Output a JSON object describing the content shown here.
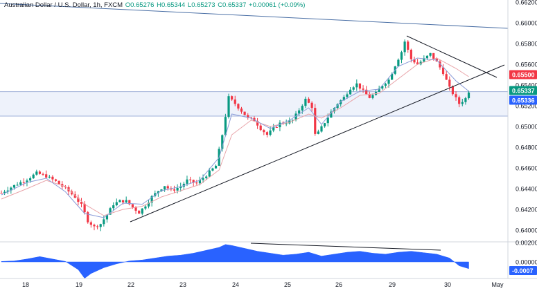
{
  "header": {
    "symbol": "Australian Dollar / U.S. Dollar, 1h, FXCM",
    "open": "O0.65276",
    "high": "H0.65344",
    "low": "L0.65273",
    "close": "C0.65337",
    "change": "+0.00061 (+0.09%)"
  },
  "chart_data": [
    {
      "type": "candlestick",
      "title": "Australian Dollar / U.S. Dollar, 1h, FXCM",
      "x_tick_labels": [
        "18",
        "19",
        "22",
        "23",
        "24",
        "25",
        "26",
        "29",
        "30",
        "May"
      ],
      "y_tick_labels": [
        "0.64000",
        "0.64200",
        "0.64400",
        "0.64600",
        "0.64800",
        "0.65000",
        "0.65200",
        "0.65400",
        "0.65600",
        "0.65800",
        "0.66000",
        "0.66200"
      ],
      "ylim": [
        0.6397,
        0.6625
      ],
      "grid": false,
      "price_labels": [
        {
          "value": "0.65500",
          "color": "#f23645"
        },
        {
          "value": "0.65337",
          "color": "#089981"
        },
        {
          "value": "0.65336",
          "color": "#2962ff"
        }
      ],
      "last_close": 0.65337,
      "series_path": [
        [
          0,
          0.6436
        ],
        [
          4,
          0.6443
        ],
        [
          8,
          0.6449
        ],
        [
          11,
          0.6455
        ],
        [
          14,
          0.6452
        ],
        [
          17,
          0.6447
        ],
        [
          20,
          0.644
        ],
        [
          23,
          0.6432
        ],
        [
          25,
          0.6424
        ],
        [
          27,
          0.6409
        ],
        [
          29,
          0.6403
        ],
        [
          31,
          0.6406
        ],
        [
          33,
          0.6415
        ],
        [
          35,
          0.6425
        ],
        [
          37,
          0.6428
        ],
        [
          39,
          0.6428
        ],
        [
          41,
          0.6422
        ],
        [
          43,
          0.6417
        ],
        [
          45,
          0.6424
        ],
        [
          47,
          0.6432
        ],
        [
          49,
          0.6438
        ],
        [
          51,
          0.6443
        ],
        [
          53,
          0.6438
        ],
        [
          56,
          0.6442
        ],
        [
          58,
          0.6448
        ],
        [
          61,
          0.6445
        ],
        [
          64,
          0.6453
        ],
        [
          67,
          0.6462
        ],
        [
          69,
          0.6492
        ],
        [
          71,
          0.6528
        ],
        [
          73,
          0.6522
        ],
        [
          75,
          0.6515
        ],
        [
          77,
          0.6508
        ],
        [
          79,
          0.6506
        ],
        [
          81,
          0.6498
        ],
        [
          83,
          0.6492
        ],
        [
          85,
          0.6498
        ],
        [
          87,
          0.6503
        ],
        [
          89,
          0.6504
        ],
        [
          91,
          0.6506
        ],
        [
          93,
          0.6516
        ],
        [
          95,
          0.6526
        ],
        [
          97,
          0.6519
        ],
        [
          98,
          0.6492
        ],
        [
          99,
          0.6494
        ],
        [
          101,
          0.6504
        ],
        [
          103,
          0.6514
        ],
        [
          105,
          0.6522
        ],
        [
          107,
          0.6528
        ],
        [
          109,
          0.6537
        ],
        [
          111,
          0.6541
        ],
        [
          113,
          0.6534
        ],
        [
          115,
          0.6528
        ],
        [
          117,
          0.6532
        ],
        [
          119,
          0.654
        ],
        [
          121,
          0.6545
        ],
        [
          123,
          0.6559
        ],
        [
          125,
          0.6572
        ],
        [
          126,
          0.6582
        ],
        [
          128,
          0.6565
        ],
        [
          130,
          0.656
        ],
        [
          132,
          0.6565
        ],
        [
          134,
          0.657
        ],
        [
          136,
          0.6562
        ],
        [
          138,
          0.6552
        ],
        [
          140,
          0.6537
        ],
        [
          142,
          0.6527
        ],
        [
          143,
          0.6522
        ],
        [
          145,
          0.6527
        ],
        [
          146,
          0.6534
        ]
      ],
      "ma_red": [
        [
          0,
          0.643
        ],
        [
          8,
          0.644
        ],
        [
          14,
          0.6448
        ],
        [
          20,
          0.6442
        ],
        [
          26,
          0.6425
        ],
        [
          32,
          0.6414
        ],
        [
          38,
          0.642
        ],
        [
          44,
          0.6423
        ],
        [
          50,
          0.6432
        ],
        [
          56,
          0.6438
        ],
        [
          62,
          0.6444
        ],
        [
          68,
          0.6458
        ],
        [
          72,
          0.6492
        ],
        [
          78,
          0.6506
        ],
        [
          84,
          0.65
        ],
        [
          90,
          0.6504
        ],
        [
          96,
          0.6512
        ],
        [
          100,
          0.6508
        ],
        [
          106,
          0.6518
        ],
        [
          112,
          0.653
        ],
        [
          118,
          0.6532
        ],
        [
          124,
          0.6546
        ],
        [
          130,
          0.656
        ],
        [
          136,
          0.6566
        ],
        [
          142,
          0.6556
        ],
        [
          146,
          0.6548
        ]
      ],
      "ma_blue": [
        [
          0,
          0.6434
        ],
        [
          8,
          0.6446
        ],
        [
          14,
          0.645
        ],
        [
          20,
          0.6437
        ],
        [
          26,
          0.6416
        ],
        [
          32,
          0.6412
        ],
        [
          38,
          0.6426
        ],
        [
          44,
          0.6425
        ],
        [
          50,
          0.6438
        ],
        [
          56,
          0.6442
        ],
        [
          62,
          0.6448
        ],
        [
          68,
          0.647
        ],
        [
          72,
          0.6512
        ],
        [
          78,
          0.6508
        ],
        [
          84,
          0.6498
        ],
        [
          90,
          0.6506
        ],
        [
          96,
          0.6518
        ],
        [
          100,
          0.6502
        ],
        [
          106,
          0.6524
        ],
        [
          112,
          0.6534
        ],
        [
          118,
          0.6536
        ],
        [
          124,
          0.6558
        ],
        [
          130,
          0.6566
        ],
        [
          136,
          0.6564
        ],
        [
          142,
          0.6544
        ],
        [
          146,
          0.6534
        ]
      ]
    },
    {
      "type": "area",
      "y_tick_labels": [
        "0.00200",
        "0.00000"
      ],
      "value_label": "-0.0007",
      "series": [
        {
          "values": [
            [
              0,
              5e-05
            ],
            [
              4,
              0.0001
            ],
            [
              8,
              0.0003
            ],
            [
              12,
              0.00055
            ],
            [
              16,
              0.0003
            ],
            [
              20,
              5e-05
            ],
            [
              24,
              -0.0008
            ],
            [
              26,
              -0.0017
            ],
            [
              28,
              -0.0012
            ],
            [
              32,
              -0.0006
            ],
            [
              36,
              -0.0002
            ],
            [
              40,
              0.0001
            ],
            [
              44,
              0.0002
            ],
            [
              48,
              0.0004
            ],
            [
              52,
              0.0006
            ],
            [
              56,
              0.0007
            ],
            [
              60,
              0.0009
            ],
            [
              64,
              0.0012
            ],
            [
              68,
              0.0015
            ],
            [
              70,
              0.0018
            ],
            [
              72,
              0.0017
            ],
            [
              76,
              0.0014
            ],
            [
              80,
              0.0011
            ],
            [
              84,
              0.0009
            ],
            [
              88,
              0.0007
            ],
            [
              92,
              0.0008
            ],
            [
              96,
              0.001
            ],
            [
              100,
              0.0006
            ],
            [
              104,
              0.0008
            ],
            [
              108,
              0.001
            ],
            [
              112,
              0.0011
            ],
            [
              116,
              0.0009
            ],
            [
              120,
              0.0008
            ],
            [
              124,
              0.001
            ],
            [
              128,
              0.0011
            ],
            [
              132,
              0.00095
            ],
            [
              136,
              0.0008
            ],
            [
              140,
              0.0004
            ],
            [
              143,
              -0.0004
            ],
            [
              146,
              -0.0007
            ]
          ]
        }
      ]
    }
  ],
  "colors": {
    "up": "#089981",
    "down": "#f23645",
    "ma_red": "#e8a3a8",
    "ma_blue": "#8a9bd8",
    "trendline": "#131722",
    "channel_line": "#4a6fa5",
    "zone_fill": "#eef2fb",
    "zone_border": "#9fb0d8",
    "oscillator": "#2962ff",
    "axis_text": "#131722"
  }
}
